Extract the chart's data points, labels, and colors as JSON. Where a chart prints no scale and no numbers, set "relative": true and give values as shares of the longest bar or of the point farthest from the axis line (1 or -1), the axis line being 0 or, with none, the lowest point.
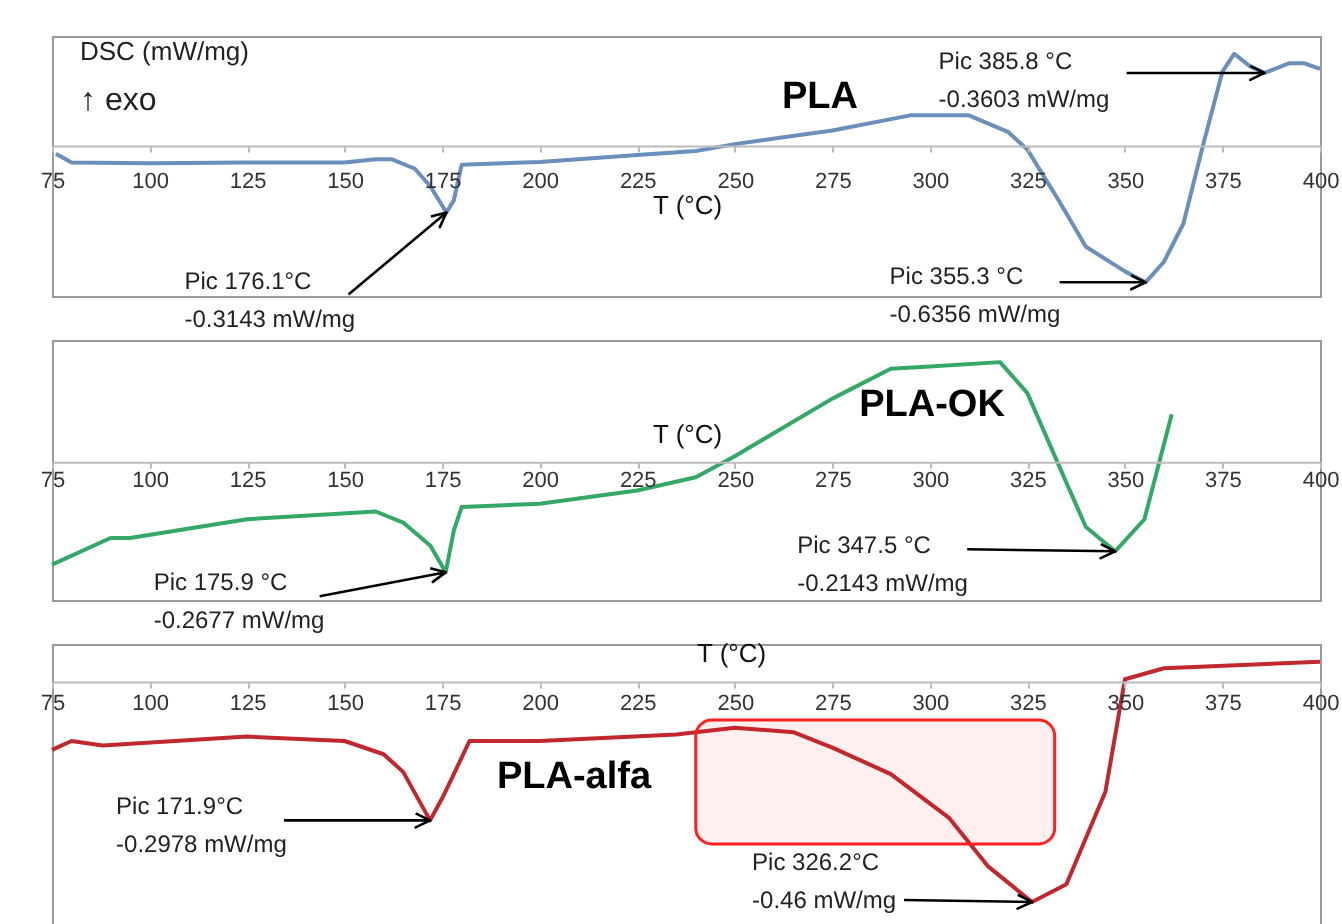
{
  "chart_data": [
    {
      "type": "line",
      "title": "PLA",
      "ylabel": "DSC (mW/mg)",
      "xlabel": "T (°C)",
      "relative": true,
      "color": "#6a8fba",
      "xlim": [
        75,
        400
      ],
      "xticks": [
        75,
        100,
        125,
        150,
        175,
        200,
        225,
        250,
        275,
        300,
        325,
        350,
        375,
        400
      ],
      "x": [
        76,
        80,
        100,
        125,
        150,
        158,
        162,
        168,
        172,
        176.1,
        178,
        180,
        200,
        225,
        240,
        250,
        275,
        295,
        310,
        320,
        325,
        333,
        340,
        350,
        355.3,
        360,
        365,
        370,
        375,
        378,
        382,
        385.8,
        392,
        396,
        400
      ],
      "values": [
        -0.06,
        -0.125,
        -0.13,
        -0.125,
        -0.125,
        -0.1,
        -0.1,
        -0.17,
        -0.3,
        -0.49,
        -0.4,
        -0.14,
        -0.12,
        -0.07,
        -0.04,
        0.01,
        0.11,
        0.22,
        0.22,
        0.1,
        -0.03,
        -0.4,
        -0.74,
        -0.92,
        -1,
        -0.85,
        -0.57,
        0,
        0.54,
        0.67,
        0.58,
        0.53,
        0.6,
        0.6,
        0.56
      ],
      "annotations": [
        "↑ exo",
        {
          "text": "Pic 176.1°C\n-0.3143 mW/mg",
          "x": 176.1,
          "y": -0.49
        },
        {
          "text": "Pic 385.8 °C\n-0.3603 mW/mg",
          "x": 385.8,
          "y": 0.53
        },
        {
          "text": "Pic 355.3 °C\n-0.6356 mW/mg",
          "x": 355.3,
          "y": -1
        }
      ]
    },
    {
      "type": "line",
      "title": "PLA-OK",
      "xlabel": "T (°C)",
      "relative": true,
      "color": "#34a866",
      "xlim": [
        75,
        400
      ],
      "xticks": [
        75,
        100,
        125,
        150,
        175,
        200,
        225,
        250,
        275,
        300,
        325,
        350,
        375,
        400
      ],
      "x": [
        75,
        90,
        95,
        125,
        158,
        165,
        172,
        175.9,
        178,
        180,
        200,
        225,
        240,
        250,
        275,
        290,
        300,
        318,
        325,
        335,
        340,
        347.5,
        355,
        362
      ],
      "values": [
        -0.93,
        -0.69,
        -0.69,
        -0.52,
        -0.45,
        -0.55,
        -0.76,
        -1,
        -0.62,
        -0.41,
        -0.38,
        -0.26,
        -0.14,
        0.05,
        0.57,
        0.84,
        0.86,
        0.9,
        0.62,
        -0.19,
        -0.59,
        -0.81,
        -0.52,
        0.43
      ],
      "annotations": [
        {
          "text": "Pic 175.9 °C\n-0.2677 mW/mg",
          "x": 175.9,
          "y": -1
        },
        {
          "text": "Pic 347.5 °C\n-0.2143 mW/mg",
          "x": 347.5,
          "y": -0.81
        }
      ]
    },
    {
      "type": "line",
      "title": "PLA-alfa",
      "xlabel": "T (°C)",
      "relative": true,
      "color": "#c0282d",
      "xlim": [
        75,
        400
      ],
      "xticks": [
        75,
        100,
        125,
        150,
        175,
        200,
        225,
        250,
        275,
        300,
        325,
        350,
        375,
        400
      ],
      "x": [
        75,
        80,
        88,
        125,
        150,
        160,
        165,
        171.9,
        175,
        178,
        182,
        200,
        235,
        250,
        265,
        275,
        290,
        305,
        315,
        326.2,
        335,
        345,
        350,
        360,
        400
      ],
      "values": [
        -0.31,
        -0.27,
        -0.29,
        -0.25,
        -0.27,
        -0.33,
        -0.41,
        -0.63,
        -0.53,
        -0.42,
        -0.27,
        -0.27,
        -0.24,
        -0.21,
        -0.23,
        -0.3,
        -0.42,
        -0.62,
        -0.84,
        -1,
        -0.92,
        -0.5,
        0.01,
        0.06,
        0.09
      ],
      "bands": [
        {
          "axis": "x",
          "from": 240,
          "to": 332,
          "color": "#ff2020"
        }
      ],
      "annotations": [
        {
          "text": "Pic 171.9°C\n-0.2978 mW/mg",
          "x": 171.9,
          "y": -0.63
        },
        {
          "text": "Pic 326.2°C\n-0.46 mW/mg",
          "x": 326.2,
          "y": -1
        }
      ]
    }
  ]
}
